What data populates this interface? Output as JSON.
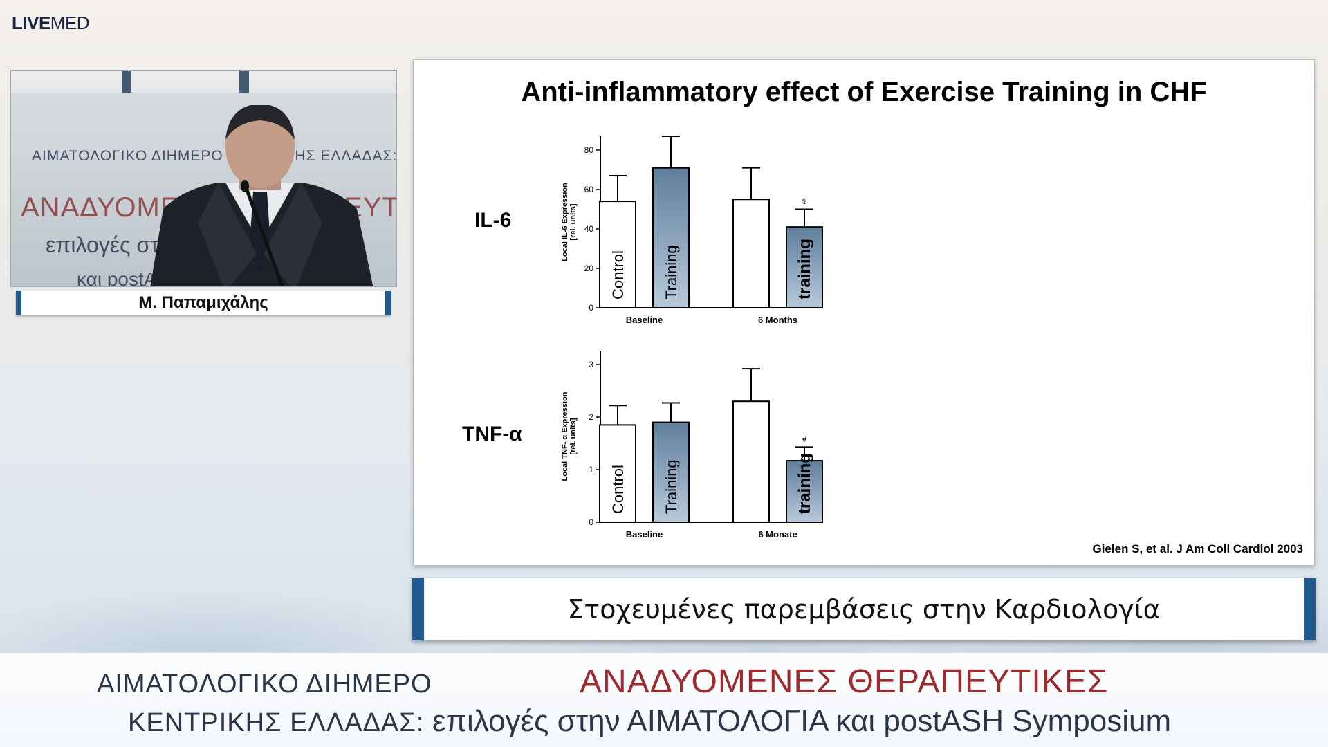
{
  "logo": {
    "live": "LIVE",
    "med": "MED"
  },
  "video": {
    "backdrop_line1": "ΑΙΜΑΤΟΛΟΓΙΚΟ ΔΙΗΜΕΡΟ ΚΕΝΤΡΙΚΗΣ ΕΛΛΑΔΑΣ:",
    "backdrop_line2": "ΑΝΑΔΥΟΜΕΝΕΣ ΘΕΡΑΠΕΥΤΙΚΕΣ",
    "backdrop_line3": "επιλογές στην ΑΙΜΑΤΟΛΟΓΙΑ",
    "backdrop_line4": "και postASH"
  },
  "speaker": {
    "name": "Μ. Παπαμιχάλης"
  },
  "slide": {
    "title": "Anti-inflammatory effect of Exercise Training in CHF",
    "citation": "Gielen S, et al. J Am Coll Cardiol 2003"
  },
  "chart_data": [
    {
      "type": "bar",
      "row_label": "IL-6",
      "ylabel_line1": "Local IL-6 Expression",
      "ylabel_line2": "[rel. units]",
      "ylim": [
        0,
        80
      ],
      "yticks": [
        "0",
        "20",
        "40",
        "60",
        "80"
      ],
      "groups": [
        "Baseline",
        "6 Months"
      ],
      "bars": [
        {
          "label": "Control",
          "group": 0,
          "value": 54,
          "error": 13,
          "filled": false,
          "mark": ""
        },
        {
          "label": "Training",
          "group": 0,
          "value": 71,
          "error": 16,
          "filled": true,
          "mark": ""
        },
        {
          "label": "",
          "group": 1,
          "value": 55,
          "error": 16,
          "filled": false,
          "mark": ""
        },
        {
          "label": "training",
          "group": 1,
          "value": 41,
          "error": 9,
          "filled": true,
          "mark": "$"
        }
      ]
    },
    {
      "type": "bar",
      "row_label": "TNF-α",
      "ylabel_line1": "Local TNF- α Expression",
      "ylabel_line2": "[rel. units]",
      "ylim": [
        0,
        3
      ],
      "yticks": [
        "0",
        "1",
        "2",
        "3"
      ],
      "groups": [
        "Baseline",
        "6 Monate"
      ],
      "bars": [
        {
          "label": "Control",
          "group": 0,
          "value": 1.85,
          "error": 0.37,
          "filled": false,
          "mark": ""
        },
        {
          "label": "Training",
          "group": 0,
          "value": 1.9,
          "error": 0.37,
          "filled": true,
          "mark": ""
        },
        {
          "label": "",
          "group": 1,
          "value": 2.3,
          "error": 0.62,
          "filled": false,
          "mark": ""
        },
        {
          "label": "training",
          "group": 1,
          "value": 1.17,
          "error": 0.26,
          "filled": true,
          "mark": "#"
        }
      ]
    }
  ],
  "topic_bar": {
    "text": "Στοχευμένες παρεμβάσεις στην Καρδιολογία"
  },
  "footer": {
    "left_line1": "ΑΙΜΑΤΟΛΟΓΙΚΟ ΔΙΗΜΕΡΟ",
    "left_line2": "ΚΕΝΤΡΙΚΗΣ ΕΛΛΑΔΑΣ:",
    "right_line1": "ΑΝΑΔΥΟΜΕΝΕΣ ΘΕΡΑΠΕΥΤΙΚΕΣ",
    "right_line2": "επιλογές στην ΑΙΜΑΤΟΛΟΓΙΑ και postASH Symposium"
  },
  "colors": {
    "accent_blue": "#1f5a8e",
    "bar_fill_top": "#5f7e9c",
    "bar_fill_bottom": "#b8cadb",
    "footer_red": "#9c2a2e"
  }
}
